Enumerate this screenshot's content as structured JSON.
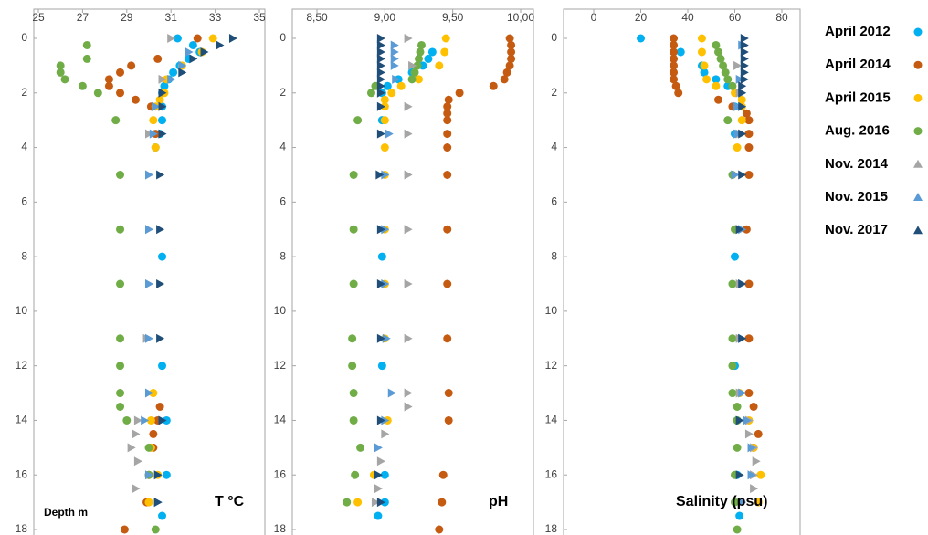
{
  "chart_data": [
    {
      "type": "scatter",
      "xlabel": "T °C",
      "ylabel": "Depth m",
      "xlim": [
        25,
        35
      ],
      "xticks": [
        25,
        27,
        29,
        31,
        33,
        35
      ],
      "ylim": [
        0,
        18
      ],
      "yticks": [
        0,
        2,
        4,
        6,
        8,
        10,
        12,
        14,
        16,
        18
      ],
      "y_inverted": true,
      "series": [
        {
          "name": "April 2012",
          "color": "#00b0f0",
          "marker": "circle",
          "x": [
            31.3,
            32.0,
            32.3,
            31.8,
            31.4,
            31.1,
            30.9,
            30.7,
            30.6,
            30.6,
            30.6,
            30.5,
            30.3,
            30.6,
            30.6,
            30.8,
            30.8,
            30.6
          ],
          "values": [
            0,
            0.25,
            0.5,
            0.75,
            1,
            1.25,
            1.5,
            1.75,
            2,
            2.5,
            3,
            3.5,
            4,
            8,
            12,
            14,
            16,
            17.5
          ]
        },
        {
          "name": "April 2014",
          "color": "#c55a11",
          "marker": "circle",
          "x": [
            32.2,
            30.4,
            29.2,
            28.7,
            28.2,
            28.2,
            28.7,
            29.4,
            30.1,
            30.3,
            30.5,
            30.4,
            30.2,
            30.2,
            30.0,
            29.9,
            28.9
          ],
          "values": [
            0,
            0.75,
            1,
            1.25,
            1.5,
            1.75,
            2,
            2.25,
            2.5,
            3.5,
            13.5,
            14,
            14.5,
            15,
            16,
            17,
            18
          ]
        },
        {
          "name": "April 2015",
          "color": "#ffc000",
          "marker": "circle",
          "x": [
            32.9,
            32.4,
            31.5,
            30.8,
            30.7,
            30.5,
            30.3,
            30.2,
            30.3,
            30.2,
            30.1,
            30.1,
            30.4,
            30.0
          ],
          "values": [
            0,
            0.5,
            1,
            1.5,
            2,
            2.25,
            2.5,
            3,
            4,
            13,
            14,
            15,
            16,
            17
          ]
        },
        {
          "name": "Aug. 2016",
          "color": "#70ad47",
          "marker": "circle",
          "x": [
            27.2,
            27.2,
            26.0,
            26.0,
            26.2,
            27.0,
            27.7,
            28.5,
            28.7,
            28.7,
            28.7,
            28.7,
            28.7,
            28.7,
            28.7,
            29.0,
            30.0,
            30.0,
            30.3
          ],
          "values": [
            0.25,
            0.75,
            1,
            1.25,
            1.5,
            1.75,
            2,
            3,
            5,
            7,
            9,
            11,
            12,
            13,
            13.5,
            14,
            15,
            16,
            18
          ]
        },
        {
          "name": "Nov. 2014",
          "color": "#a5a5a5",
          "marker": "triangle",
          "x": [
            31.0,
            30.6,
            30.3,
            30.0,
            30.0,
            30.0,
            30.0,
            29.9,
            29.5,
            29.4,
            29.2,
            29.5,
            29.4
          ],
          "values": [
            0,
            1.5,
            2.5,
            3.5,
            5,
            7,
            9,
            11,
            14,
            14.5,
            15,
            15.5,
            16.5
          ]
        },
        {
          "name": "Nov. 2015",
          "color": "#5b9bd5",
          "marker": "triangle",
          "x": [
            31.8,
            31.5,
            31.0,
            30.3,
            30.2,
            30.0,
            30.0,
            30.0,
            30.0,
            30.0,
            29.8,
            30.0,
            30.4
          ],
          "values": [
            0.5,
            1,
            1.5,
            2.5,
            3.5,
            5,
            7,
            9,
            11,
            13,
            14,
            16,
            17
          ]
        },
        {
          "name": "Nov. 2017",
          "color": "#1f4e79",
          "marker": "triangle",
          "x": [
            33.8,
            33.2,
            32.5,
            32.0,
            31.5,
            30.6,
            30.6,
            30.6,
            30.5,
            30.5,
            30.5,
            30.5,
            30.6,
            30.4,
            30.4
          ],
          "values": [
            0,
            0.25,
            0.5,
            0.75,
            1.25,
            2,
            2.5,
            3.5,
            5,
            7,
            9,
            11,
            14,
            16,
            17
          ]
        }
      ]
    },
    {
      "type": "scatter",
      "xlabel": "pH",
      "xlim": [
        8.5,
        10
      ],
      "xticks": [
        {
          "value": 8.5,
          "label": "8,50"
        },
        {
          "value": 9,
          "label": "9,00"
        },
        {
          "value": 9.5,
          "label": "9,50"
        },
        {
          "value": 10,
          "label": "10,00"
        }
      ],
      "ylim": [
        0,
        18
      ],
      "yticks": [
        0,
        2,
        4,
        6,
        8,
        10,
        12,
        14,
        16,
        18
      ],
      "y_inverted": true,
      "series": [
        {
          "color": "#00b0f0",
          "marker": "circle",
          "x": [
            9.35,
            9.32,
            9.28,
            9.2,
            9.1,
            9.02,
            8.98,
            8.98,
            8.98,
            8.98,
            9.0,
            9.0,
            8.95
          ],
          "values": [
            0.5,
            0.75,
            1,
            1.25,
            1.5,
            1.75,
            2,
            3,
            8,
            12,
            16,
            17,
            17.5
          ]
        },
        {
          "color": "#c55a11",
          "marker": "circle",
          "x": [
            9.92,
            9.93,
            9.93,
            9.93,
            9.92,
            9.9,
            9.88,
            9.8,
            9.55,
            9.47,
            9.46,
            9.46,
            9.46,
            9.46,
            9.46,
            9.46,
            9.46,
            9.46,
            9.46,
            9.47,
            9.47,
            9.43,
            9.42,
            9.4
          ],
          "values": [
            0,
            0.25,
            0.5,
            0.75,
            1,
            1.25,
            1.5,
            1.75,
            2,
            2.25,
            2.5,
            2.75,
            3,
            3.5,
            4,
            5,
            7,
            9,
            11,
            13,
            14,
            16,
            17,
            18
          ]
        },
        {
          "color": "#ffc000",
          "marker": "circle",
          "x": [
            9.45,
            9.44,
            9.4,
            9.25,
            9.12,
            9.05,
            9.0,
            9.0,
            9.0,
            9.0,
            9.0,
            9.0,
            9.0,
            9.0,
            9.02,
            8.92,
            8.8
          ],
          "values": [
            0,
            0.5,
            1,
            1.5,
            1.75,
            2,
            2.25,
            2.5,
            3,
            4,
            5,
            7,
            9,
            11,
            14,
            16,
            17
          ]
        },
        {
          "color": "#70ad47",
          "marker": "circle",
          "x": [
            9.27,
            9.26,
            9.25,
            9.24,
            9.22,
            9.2,
            8.93,
            8.9,
            8.8,
            8.77,
            8.77,
            8.77,
            8.76,
            8.76,
            8.77,
            8.77,
            8.82,
            8.78,
            8.72
          ],
          "values": [
            0.25,
            0.5,
            0.75,
            1,
            1.25,
            1.5,
            1.75,
            2,
            3,
            5,
            7,
            9,
            11,
            12,
            13,
            14,
            15,
            16,
            17
          ]
        },
        {
          "color": "#a5a5a5",
          "marker": "triangle",
          "x": [
            9.17,
            9.2,
            9.17,
            9.17,
            9.17,
            9.17,
            9.17,
            9.17,
            9.17,
            9.17,
            9.0,
            8.97,
            8.95,
            8.93
          ],
          "values": [
            0,
            1,
            2.5,
            3.5,
            5,
            7,
            9,
            11,
            13,
            13.5,
            14.5,
            15.5,
            16.5,
            17
          ]
        },
        {
          "color": "#5b9bd5",
          "marker": "triangle",
          "x": [
            9.07,
            9.07,
            9.07,
            9.07,
            9.08,
            9.03,
            9.0,
            9.0,
            9.0,
            9.01,
            9.05,
            9.0,
            8.95
          ],
          "values": [
            0.25,
            0.5,
            0.75,
            1,
            1.5,
            3.5,
            5,
            7,
            9,
            11,
            13,
            14,
            15
          ]
        },
        {
          "color": "#1f4e79",
          "marker": "triangle",
          "x": [
            8.97,
            8.97,
            8.97,
            8.97,
            8.97,
            8.97,
            8.97,
            8.97,
            8.97,
            8.97,
            8.97,
            8.96,
            8.97,
            8.97,
            8.97,
            8.97,
            8.95,
            8.97
          ],
          "values": [
            0,
            0.25,
            0.5,
            0.75,
            1,
            1.25,
            1.5,
            1.75,
            2,
            2.5,
            3.5,
            5,
            7,
            9,
            11,
            14,
            16,
            17
          ]
        }
      ]
    },
    {
      "type": "scatter",
      "xlabel": "Salinity (psu)",
      "xlim": [
        0,
        80
      ],
      "xticks": [
        0,
        20,
        40,
        60,
        80
      ],
      "ylim": [
        0,
        18
      ],
      "yticks": [
        0,
        2,
        4,
        6,
        8,
        10,
        12,
        14,
        16,
        18
      ],
      "y_inverted": true,
      "series": [
        {
          "color": "#00b0f0",
          "marker": "circle",
          "x": [
            20,
            37,
            46,
            47,
            52,
            57,
            60,
            60,
            60,
            60,
            61,
            61,
            62
          ],
          "values": [
            0,
            0.5,
            1,
            1.25,
            1.5,
            1.75,
            2.5,
            3.5,
            8,
            12,
            14,
            16,
            17.5
          ]
        },
        {
          "color": "#c55a11",
          "marker": "circle",
          "x": [
            34,
            34,
            34,
            34,
            34,
            34,
            34,
            35,
            36,
            53,
            59,
            65,
            66,
            66,
            66,
            66,
            65,
            66,
            66,
            66,
            68,
            70,
            68
          ],
          "values": [
            0,
            0.25,
            0.5,
            0.75,
            1,
            1.25,
            1.5,
            1.75,
            2,
            2.25,
            2.5,
            2.75,
            3,
            3.5,
            4,
            5,
            7,
            9,
            11,
            13,
            13.5,
            14.5,
            15
          ]
        },
        {
          "color": "#ffc000",
          "marker": "circle",
          "x": [
            46,
            46,
            47,
            48,
            52,
            60,
            63,
            63,
            63,
            61,
            62,
            66,
            68,
            71,
            70
          ],
          "values": [
            0,
            0.5,
            1,
            1.5,
            1.75,
            2,
            2.25,
            2.5,
            3,
            4,
            13,
            14,
            15,
            16,
            17
          ]
        },
        {
          "color": "#70ad47",
          "marker": "circle",
          "x": [
            52,
            53,
            54,
            55,
            56,
            57,
            59,
            57,
            59,
            60,
            59,
            59,
            59,
            59,
            61,
            61,
            61,
            60,
            60,
            61
          ],
          "values": [
            0.25,
            0.5,
            0.75,
            1,
            1.25,
            1.5,
            1.75,
            3,
            5,
            7,
            9,
            11,
            12,
            13,
            13.5,
            14,
            15,
            16,
            17,
            18
          ]
        },
        {
          "color": "#a5a5a5",
          "marker": "triangle",
          "x": [
            61,
            62,
            62,
            60,
            62,
            62,
            62,
            62,
            66,
            66,
            68,
            69,
            68,
            68
          ],
          "values": [
            1,
            2,
            3.5,
            5,
            7,
            9,
            11,
            13,
            14,
            14.5,
            15,
            15.5,
            16,
            16.5
          ]
        },
        {
          "color": "#5b9bd5",
          "marker": "triangle",
          "x": [
            63,
            62,
            61,
            61,
            60,
            63,
            63,
            63,
            63,
            65,
            67,
            67,
            63
          ],
          "values": [
            0.25,
            1.5,
            2.5,
            3.5,
            5,
            7,
            9,
            11,
            13,
            14,
            15,
            16,
            17
          ]
        },
        {
          "color": "#1f4e79",
          "marker": "triangle",
          "x": [
            64,
            64,
            64,
            64,
            64,
            64,
            64,
            63,
            63,
            63,
            63,
            63,
            62,
            63,
            63,
            62,
            62
          ],
          "values": [
            0,
            0.25,
            0.5,
            0.75,
            1,
            1.25,
            1.5,
            1.75,
            2,
            2.5,
            3.5,
            5,
            7,
            9,
            11,
            14,
            16
          ]
        }
      ]
    }
  ]
}
